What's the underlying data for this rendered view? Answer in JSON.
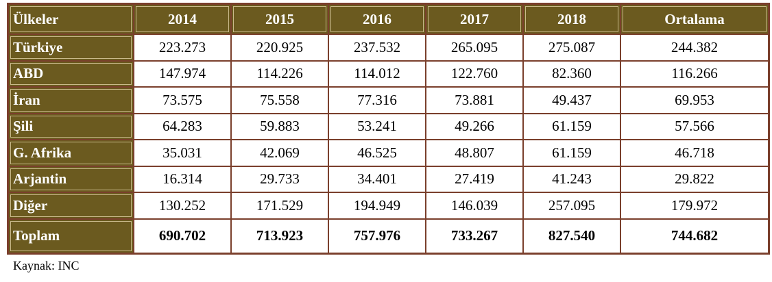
{
  "table": {
    "headers": [
      "Ülkeler",
      "2014",
      "2015",
      "2016",
      "2017",
      "2018",
      "Ortalama"
    ],
    "rows": [
      {
        "country": "Türkiye",
        "values": [
          "223.273",
          "220.925",
          "237.532",
          "265.095",
          "275.087",
          "244.382"
        ]
      },
      {
        "country": "ABD",
        "values": [
          "147.974",
          "114.226",
          "114.012",
          "122.760",
          "82.360",
          "116.266"
        ]
      },
      {
        "country": "İran",
        "values": [
          "73.575",
          "75.558",
          "77.316",
          "73.881",
          "49.437",
          "69.953"
        ]
      },
      {
        "country": "Şili",
        "values": [
          "64.283",
          "59.883",
          "53.241",
          "49.266",
          "61.159",
          "57.566"
        ]
      },
      {
        "country": "G. Afrika",
        "values": [
          "35.031",
          "42.069",
          "46.525",
          "48.807",
          "61.159",
          "46.718"
        ]
      },
      {
        "country": "Arjantin",
        "values": [
          "16.314",
          "29.733",
          "34.401",
          "27.419",
          "41.243",
          "29.822"
        ]
      },
      {
        "country": "Diğer",
        "values": [
          "130.252",
          "171.529",
          "194.949",
          "146.039",
          "257.095",
          "179.972"
        ]
      }
    ],
    "total": {
      "label": "Toplam",
      "values": [
        "690.702",
        "713.923",
        "757.976",
        "733.267",
        "827.540",
        "744.682"
      ]
    }
  },
  "source": "Kaynak: INC",
  "colors": {
    "header_bg": "#6b5a1f",
    "border": "#7a3f2c",
    "header_text": "#ffffff"
  }
}
